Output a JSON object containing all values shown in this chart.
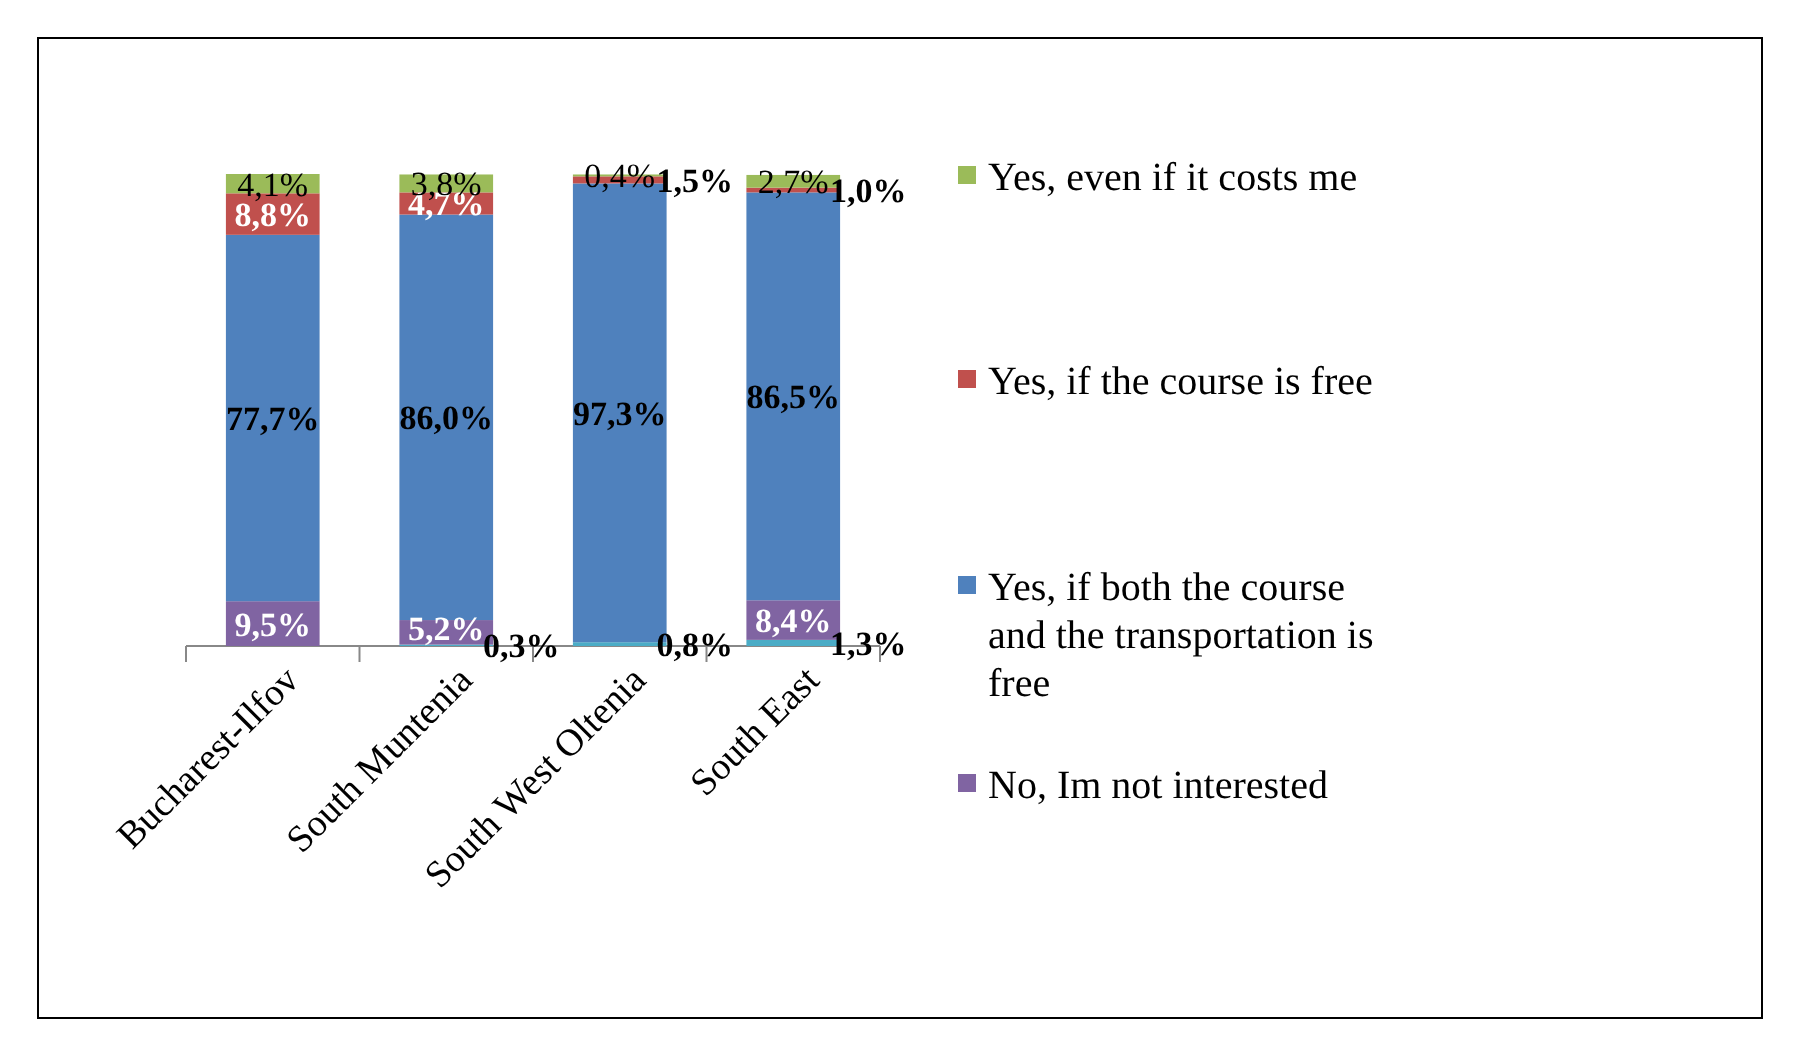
{
  "chart_data": {
    "type": "bar",
    "stacked": true,
    "legend": "right",
    "categories": [
      "Bucharest-Ilfov",
      "South Muntenia",
      "South West Oltenia",
      "South East"
    ],
    "series": [
      {
        "color": "#4bacc6",
        "values": [
          null,
          0.3,
          0.8,
          1.3
        ],
        "value_labels": [
          null,
          "0,3%",
          "0,8%",
          "1,3%"
        ]
      },
      {
        "name": "No, Im not interested",
        "color": "#8064a2",
        "values": [
          9.5,
          5.2,
          null,
          8.4
        ],
        "value_labels": [
          "9,5%",
          "5,2%",
          null,
          "8,4%"
        ]
      },
      {
        "name": "Yes, if both the course and the transportation is free",
        "color": "#4f81bd",
        "values": [
          77.7,
          86.0,
          97.3,
          86.5
        ],
        "value_labels": [
          "77,7%",
          "86,0%",
          "97,3%",
          "86,5%"
        ]
      },
      {
        "name": "Yes, if the course is free",
        "color": "#c0504d",
        "values": [
          8.8,
          4.7,
          1.5,
          1.0
        ],
        "value_labels": [
          "8,8%",
          "4,7%",
          "1,5%",
          "1,0%"
        ]
      },
      {
        "name": "Yes, even if it costs me",
        "color": "#9bbb59",
        "values": [
          4.1,
          3.8,
          0.4,
          2.7
        ],
        "value_labels": [
          "4,1%",
          "3,8%",
          "0,4%",
          "2,7%"
        ]
      }
    ]
  }
}
